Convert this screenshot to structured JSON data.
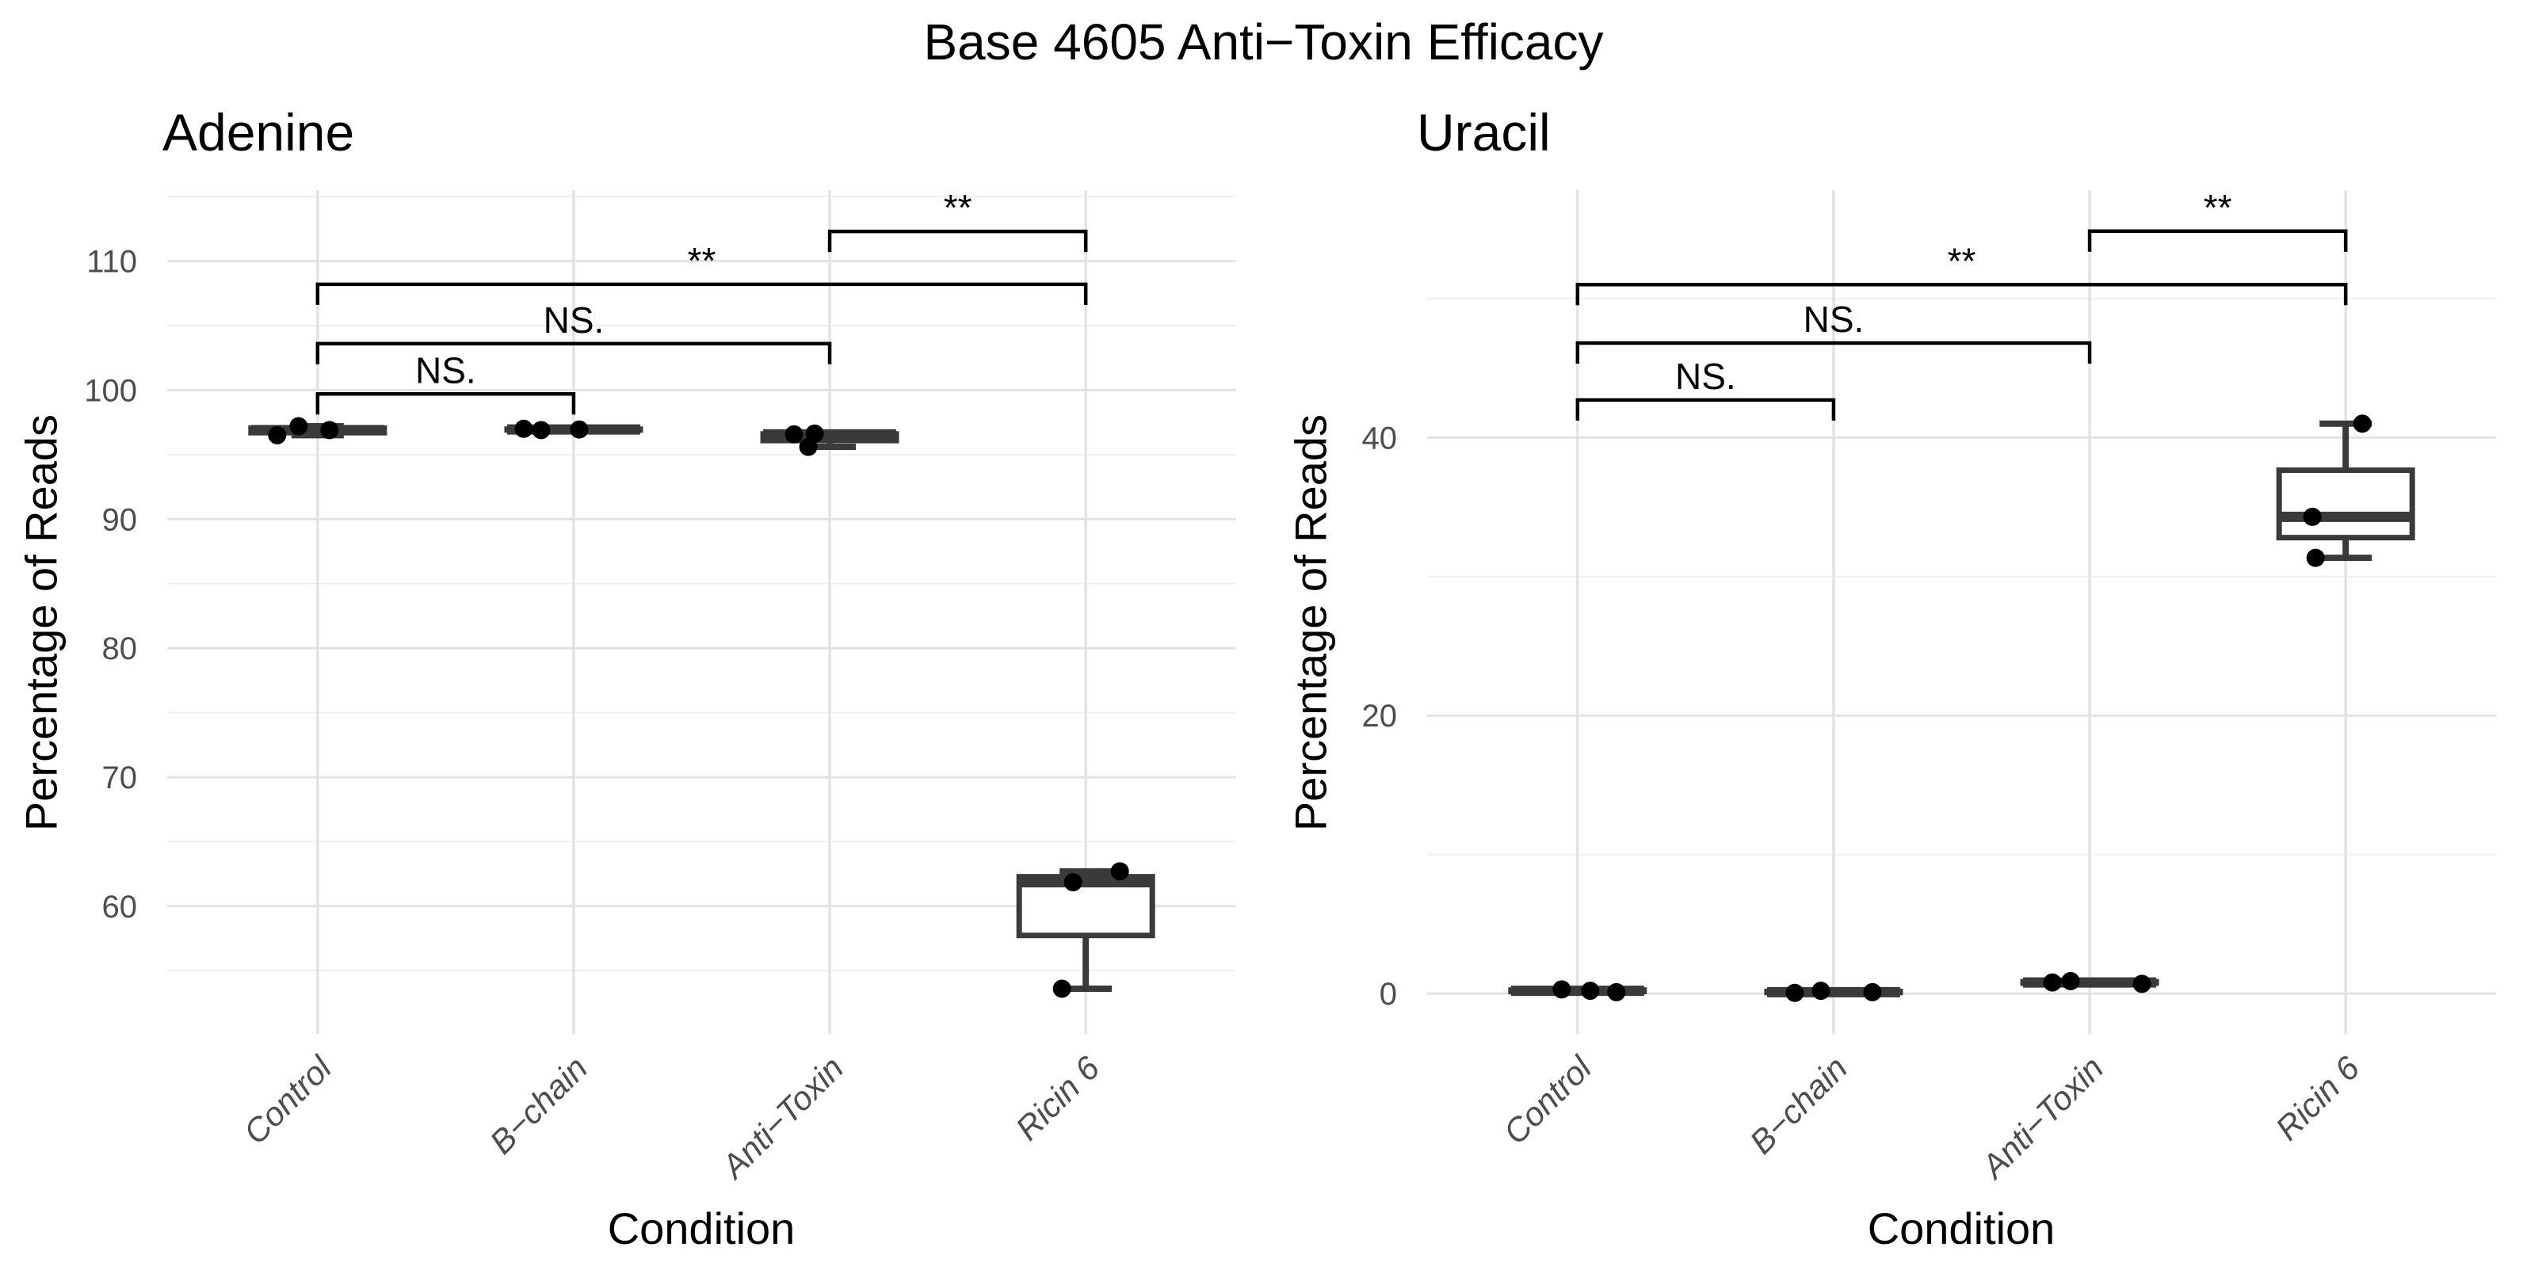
{
  "title": "Base 4605 Anti−Toxin Efficacy",
  "colors": {
    "box_stroke": "#3a3a3a",
    "median": "#3a3a3a",
    "point": "#000000",
    "bracket": "#000000",
    "grid_major": "#e2e2e2",
    "grid_minor": "#efefef",
    "tick_text": "#4d4d4d",
    "axis_text": "#000000"
  },
  "chart_data": [
    {
      "type": "boxplot",
      "facet": "Adenine",
      "xlabel": "Condition",
      "ylabel": "Percentage of Reads",
      "categories": [
        "Control",
        "B−chain",
        "Anti−Toxin",
        "Ricin 6"
      ],
      "yticks": [
        60,
        70,
        80,
        90,
        100,
        110
      ],
      "yticks_minor": [
        55,
        65,
        75,
        85,
        95,
        105,
        115
      ],
      "ylim": [
        50.1,
        115.5
      ],
      "grid": true,
      "legend": "none",
      "groups": [
        {
          "name": "Control",
          "box": {
            "min": 96.5,
            "q1": 96.7,
            "median": 96.9,
            "q3": 97.05,
            "max": 97.2
          },
          "points": [
            {
              "v": 96.5,
              "dx": -51
            },
            {
              "v": 97.2,
              "dx": -24
            },
            {
              "v": 96.9,
              "dx": 15
            }
          ]
        },
        {
          "name": "B−chain",
          "box": {
            "min": 96.9,
            "q1": 96.92,
            "median": 96.95,
            "q3": 96.97,
            "max": 97.0
          },
          "points": [
            {
              "v": 97.0,
              "dx": -63
            },
            {
              "v": 96.9,
              "dx": -41
            },
            {
              "v": 96.95,
              "dx": 7
            }
          ]
        },
        {
          "name": "Anti−Toxin",
          "box": {
            "min": 95.6,
            "q1": 96.09,
            "median": 96.57,
            "q3": 96.6,
            "max": 96.63
          },
          "points": [
            {
              "v": 96.57,
              "dx": -45
            },
            {
              "v": 95.6,
              "dx": -27
            },
            {
              "v": 96.63,
              "dx": -19
            }
          ]
        },
        {
          "name": "Ricin 6",
          "box": {
            "min": 53.6,
            "q1": 57.73,
            "median": 61.85,
            "q3": 62.28,
            "max": 62.7
          },
          "points": [
            {
              "v": 61.85,
              "dx": -16
            },
            {
              "v": 62.7,
              "dx": 43
            },
            {
              "v": 53.6,
              "dx": -30
            }
          ]
        }
      ],
      "comparisons": [
        {
          "from": 0,
          "to": 1,
          "label": "NS.",
          "y": 99.7
        },
        {
          "from": 0,
          "to": 2,
          "label": "NS.",
          "y": 103.6
        },
        {
          "from": 0,
          "to": 3,
          "label": "**",
          "y": 108.2
        },
        {
          "from": 2,
          "to": 3,
          "label": "**",
          "y": 112.3
        }
      ]
    },
    {
      "type": "boxplot",
      "facet": "Uracil",
      "xlabel": "Condition",
      "ylabel": "Percentage of Reads",
      "categories": [
        "Control",
        "B−chain",
        "Anti−Toxin",
        "Ricin 6"
      ],
      "yticks": [
        0,
        20,
        40
      ],
      "yticks_minor": [
        10,
        30,
        50
      ],
      "ylim": [
        -2.9,
        57.8
      ],
      "grid": true,
      "legend": "none",
      "groups": [
        {
          "name": "Control",
          "box": {
            "min": 0.1,
            "q1": 0.15,
            "median": 0.2,
            "q3": 0.25,
            "max": 0.3
          },
          "points": [
            {
              "v": 0.3,
              "dx": -20
            },
            {
              "v": 0.2,
              "dx": 16
            },
            {
              "v": 0.1,
              "dx": 49
            }
          ]
        },
        {
          "name": "B−chain",
          "box": {
            "min": 0.05,
            "q1": 0.08,
            "median": 0.1,
            "q3": 0.15,
            "max": 0.2
          },
          "points": [
            {
              "v": 0.05,
              "dx": -49
            },
            {
              "v": 0.2,
              "dx": -16
            },
            {
              "v": 0.1,
              "dx": 49
            }
          ]
        },
        {
          "name": "Anti−Toxin",
          "box": {
            "min": 0.7,
            "q1": 0.75,
            "median": 0.8,
            "q3": 0.85,
            "max": 0.9
          },
          "points": [
            {
              "v": 0.8,
              "dx": -47
            },
            {
              "v": 0.9,
              "dx": -24
            },
            {
              "v": 0.7,
              "dx": 66
            }
          ]
        },
        {
          "name": "Ricin 6",
          "box": {
            "min": 31.35,
            "q1": 32.8,
            "median": 34.3,
            "q3": 37.65,
            "max": 41.0
          },
          "points": [
            {
              "v": 34.3,
              "dx": -42
            },
            {
              "v": 31.35,
              "dx": -38
            },
            {
              "v": 41.0,
              "dx": 21
            }
          ]
        }
      ],
      "comparisons": [
        {
          "from": 0,
          "to": 1,
          "label": "NS.",
          "y": 42.7
        },
        {
          "from": 0,
          "to": 2,
          "label": "NS.",
          "y": 46.8
        },
        {
          "from": 0,
          "to": 3,
          "label": "**",
          "y": 51.0
        },
        {
          "from": 2,
          "to": 3,
          "label": "**",
          "y": 54.85
        }
      ]
    }
  ]
}
